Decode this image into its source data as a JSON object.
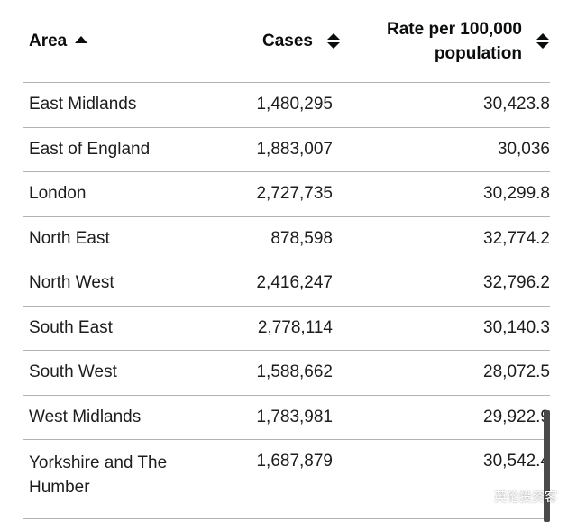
{
  "table": {
    "headers": {
      "area": "Area",
      "cases": "Cases",
      "rate_line1": "Rate per 100,000",
      "rate_line2": "population"
    },
    "sort": {
      "column": "area",
      "direction": "ascending"
    },
    "rows": [
      {
        "area": "East Midlands",
        "cases": "1,480,295",
        "rate": "30,423.8"
      },
      {
        "area": "East of England",
        "cases": "1,883,007",
        "rate": "30,036"
      },
      {
        "area": "London",
        "cases": "2,727,735",
        "rate": "30,299.8"
      },
      {
        "area": "North East",
        "cases": "878,598",
        "rate": "32,774.2"
      },
      {
        "area": "North West",
        "cases": "2,416,247",
        "rate": "32,796.2"
      },
      {
        "area": "South East",
        "cases": "2,778,114",
        "rate": "30,140.3"
      },
      {
        "area": "South West",
        "cases": "1,588,662",
        "rate": "28,072.5"
      },
      {
        "area": "West Midlands",
        "cases": "1,783,981",
        "rate": "29,922.9"
      },
      {
        "area_line1": "Yorkshire and The",
        "area_line2": "Humber",
        "cases": "1,687,879",
        "rate": "30,542.4"
      }
    ]
  },
  "watermark": {
    "text": "英伦投资客",
    "icon": "wechat-icon"
  },
  "colors": {
    "text": "#0b0c0c",
    "divider": "#b1b4b6"
  }
}
